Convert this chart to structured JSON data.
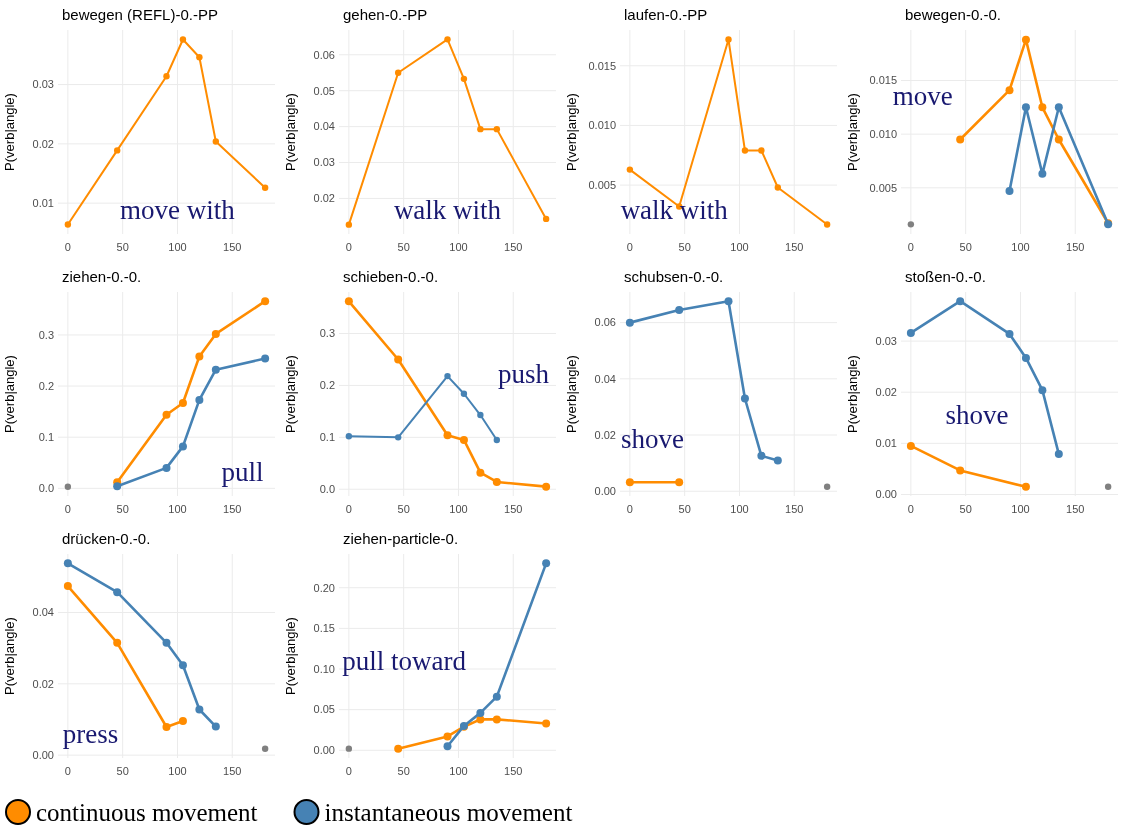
{
  "chart_data": [
    {
      "type": "line",
      "title": "bewegen (REFL)-0.-PP",
      "ylabel": "P(verb|angle)",
      "marker": "circle",
      "grid": true,
      "legend": "bottom",
      "xlim": [
        -9,
        189
      ],
      "xticks": [
        0,
        50,
        100,
        150
      ],
      "ylim": [
        0.0048,
        0.0392
      ],
      "yticks": [
        0.01,
        0.02,
        0.03
      ],
      "annotations": [
        "move with"
      ],
      "series": [
        {
          "name": "continuous movement",
          "color": "#ff8c00",
          "x": [
            0,
            45,
            90,
            105,
            120,
            135,
            180
          ],
          "values": [
            0.0064,
            0.0189,
            0.0314,
            0.0376,
            0.0346,
            0.0204,
            0.0126
          ]
        }
      ]
    },
    {
      "type": "line",
      "title": "gehen-0.-PP",
      "ylabel": "P(verb|angle)",
      "marker": "circle",
      "grid": true,
      "legend": "bottom",
      "xlim": [
        -9,
        189
      ],
      "xticks": [
        0,
        50,
        100,
        150
      ],
      "ylim": [
        0.0101,
        0.0669
      ],
      "yticks": [
        0.02,
        0.03,
        0.04,
        0.05,
        0.06
      ],
      "annotations": [
        "walk with"
      ],
      "series": [
        {
          "name": "continuous movement",
          "color": "#ff8c00",
          "x": [
            0,
            45,
            90,
            105,
            120,
            135,
            180
          ],
          "values": [
            0.0127,
            0.055,
            0.0643,
            0.0533,
            0.0393,
            0.0393,
            0.0143
          ]
        }
      ]
    },
    {
      "type": "line",
      "title": "laufen-0.-PP",
      "ylabel": "P(verb|angle)",
      "marker": "circle",
      "grid": true,
      "legend": "bottom",
      "xlim": [
        -9,
        189
      ],
      "xticks": [
        0,
        50,
        100,
        150
      ],
      "ylim": [
        0.0009,
        0.018
      ],
      "yticks": [
        0.005,
        {
          "value": 0.01,
          "label": "0.010"
        },
        0.015
      ],
      "annotations": [
        "walk with"
      ],
      "series": [
        {
          "name": "continuous movement",
          "color": "#ff8c00",
          "x": [
            0,
            45,
            90,
            105,
            120,
            135,
            180
          ],
          "values": [
            0.0063,
            0.0032,
            0.0172,
            0.0079,
            0.0079,
            0.0048,
            0.0017
          ]
        }
      ]
    },
    {
      "type": "line",
      "title": "bewegen-0.-0.",
      "ylabel": "P(verb|angle)",
      "marker": "circle",
      "grid": true,
      "legend": "bottom",
      "xlim": [
        -9,
        189
      ],
      "xticks": [
        0,
        50,
        100,
        150
      ],
      "ylim": [
        0.0007,
        0.0197
      ],
      "yticks": [
        0.005,
        {
          "value": 0.01,
          "label": "0.010"
        },
        0.015
      ],
      "annotations": [
        "move"
      ],
      "series": [
        {
          "name": "continuous movement",
          "color": "#ff8c00",
          "x": [
            45,
            90,
            105,
            120,
            135,
            180
          ],
          "values": [
            0.0095,
            0.0141,
            0.0188,
            0.0125,
            0.0095,
            0.0017
          ]
        },
        {
          "name": "instantaneous movement",
          "color": "#4682b4",
          "x": [
            90,
            105,
            120,
            135,
            180
          ],
          "values": [
            0.0047,
            0.0125,
            0.0063,
            0.0125,
            0.0016
          ]
        },
        {
          "color": "#808080",
          "x": [
            0
          ],
          "values": [
            0.0016
          ]
        }
      ]
    },
    {
      "type": "line",
      "title": "ziehen-0.-0.",
      "ylabel": "P(verb|angle)",
      "marker": "circle",
      "grid": true,
      "legend": "bottom",
      "xlim": [
        -9,
        189
      ],
      "xticks": [
        0,
        50,
        100,
        150
      ],
      "ylim": [
        -0.015,
        0.384
      ],
      "yticks": [
        {
          "value": 0,
          "label": "0.0"
        },
        0.1,
        0.2,
        0.3
      ],
      "annotations": [
        "pull"
      ],
      "series": [
        {
          "name": "continuous movement",
          "color": "#ff8c00",
          "x": [
            45,
            90,
            105,
            120,
            135,
            180
          ],
          "values": [
            0.012,
            0.144,
            0.167,
            0.258,
            0.302,
            0.366
          ]
        },
        {
          "name": "instantaneous movement",
          "color": "#4682b4",
          "x": [
            45,
            90,
            105,
            120,
            135,
            180
          ],
          "values": [
            0.004,
            0.04,
            0.082,
            0.173,
            0.232,
            0.254
          ]
        },
        {
          "color": "#808080",
          "x": [
            0
          ],
          "values": [
            0.003
          ]
        }
      ]
    },
    {
      "type": "line",
      "title": "schieben-0.-0.",
      "ylabel": "P(verb|angle)",
      "marker": "circle",
      "grid": true,
      "legend": "bottom",
      "xlim": [
        -9,
        189
      ],
      "xticks": [
        0,
        50,
        100,
        150
      ],
      "ylim": [
        -0.013,
        0.38
      ],
      "yticks": [
        {
          "value": 0,
          "label": "0.0"
        },
        0.1,
        0.2,
        0.3
      ],
      "annotations": [
        "push"
      ],
      "series": [
        {
          "name": "continuous movement",
          "color": "#ff8c00",
          "x": [
            0,
            45,
            90,
            105,
            120,
            135,
            180
          ],
          "values": [
            0.362,
            0.25,
            0.104,
            0.095,
            0.032,
            0.014,
            0.005
          ]
        },
        {
          "name": "instantaneous movement",
          "color": "#4682b4",
          "x": [
            0,
            45,
            90,
            105,
            120,
            135
          ],
          "values": [
            0.102,
            0.1,
            0.218,
            0.184,
            0.143,
            0.095
          ]
        }
      ]
    },
    {
      "type": "line",
      "title": "schubsen-0.-0.",
      "ylabel": "P(verb|angle)",
      "marker": "circle",
      "grid": true,
      "legend": "bottom",
      "xlim": [
        -9,
        189
      ],
      "xticks": [
        0,
        50,
        100,
        150
      ],
      "ylim": [
        -0.0017,
        0.0709
      ],
      "yticks": [
        {
          "value": 0,
          "label": "0.00"
        },
        {
          "value": 0.02,
          "label": "0.02"
        },
        {
          "value": 0.04,
          "label": "0.04"
        },
        {
          "value": 0.06,
          "label": "0.06"
        }
      ],
      "annotations": [
        "shove"
      ],
      "series": [
        {
          "name": "continuous movement",
          "color": "#ff8c00",
          "x": [
            0,
            45
          ],
          "values": [
            0.0032,
            0.0032
          ]
        },
        {
          "name": "instantaneous movement",
          "color": "#4682b4",
          "x": [
            0,
            45,
            90,
            105,
            120,
            135
          ],
          "values": [
            0.06,
            0.0645,
            0.0676,
            0.033,
            0.0126,
            0.0109
          ]
        },
        {
          "color": "#808080",
          "x": [
            180
          ],
          "values": [
            0.0016
          ]
        }
      ]
    },
    {
      "type": "line",
      "title": "stoßen-0.-0.",
      "ylabel": "P(verb|angle)",
      "marker": "circle",
      "grid": true,
      "legend": "bottom",
      "xlim": [
        -9,
        189
      ],
      "xticks": [
        0,
        50,
        100,
        150
      ],
      "ylim": [
        -0.0003,
        0.0396
      ],
      "yticks": [
        {
          "value": 0,
          "label": "0.00"
        },
        0.01,
        0.02,
        0.03
      ],
      "annotations": [
        "shove"
      ],
      "series": [
        {
          "name": "continuous movement",
          "color": "#ff8c00",
          "x": [
            0,
            45,
            105
          ],
          "values": [
            0.0095,
            0.0047,
            0.0015
          ]
        },
        {
          "name": "instantaneous movement",
          "color": "#4682b4",
          "x": [
            0,
            45,
            90,
            105,
            120,
            135
          ],
          "values": [
            0.0316,
            0.0378,
            0.0314,
            0.0267,
            0.0204,
            0.0079
          ]
        },
        {
          "color": "#808080",
          "x": [
            180
          ],
          "values": [
            0.0015
          ]
        }
      ]
    },
    {
      "type": "line",
      "title": "drücken-0.-0.",
      "ylabel": "P(verb|angle)",
      "marker": "circle",
      "grid": true,
      "legend": "bottom",
      "xlim": [
        -9,
        189
      ],
      "xticks": [
        0,
        50,
        100,
        150
      ],
      "ylim": [
        -0.0008,
        0.0564
      ],
      "yticks": [
        {
          "value": 0,
          "label": "0.00"
        },
        0.02,
        0.04
      ],
      "annotations": [
        "press"
      ],
      "series": [
        {
          "name": "continuous movement",
          "color": "#ff8c00",
          "x": [
            0,
            45,
            90,
            105
          ],
          "values": [
            0.0474,
            0.0315,
            0.0079,
            0.0096
          ]
        },
        {
          "name": "instantaneous movement",
          "color": "#4682b4",
          "x": [
            0,
            45,
            90,
            105,
            120,
            135
          ],
          "values": [
            0.0538,
            0.0457,
            0.0315,
            0.0252,
            0.0128,
            0.008
          ]
        },
        {
          "color": "#808080",
          "x": [
            180
          ],
          "values": [
            0.0018
          ]
        }
      ]
    },
    {
      "type": "line",
      "title": "ziehen-particle-0.",
      "ylabel": "P(verb|angle)",
      "marker": "circle",
      "grid": true,
      "legend": "bottom",
      "xlim": [
        -9,
        189
      ],
      "xticks": [
        0,
        50,
        100,
        150
      ],
      "ylim": [
        -0.0095,
        0.2415
      ],
      "yticks": [
        {
          "value": 0,
          "label": "0.00"
        },
        0.05,
        {
          "value": 0.1,
          "label": "0.10"
        },
        0.15,
        {
          "value": 0.2,
          "label": "0.20"
        }
      ],
      "annotations": [
        "pull toward"
      ],
      "series": [
        {
          "name": "continuous movement",
          "color": "#ff8c00",
          "x": [
            45,
            90,
            105,
            120,
            135,
            180
          ],
          "values": [
            0.002,
            0.017,
            0.029,
            0.038,
            0.038,
            0.033
          ]
        },
        {
          "name": "instantaneous movement",
          "color": "#4682b4",
          "x": [
            90,
            105,
            120,
            135,
            180
          ],
          "values": [
            0.005,
            0.03,
            0.046,
            0.066,
            0.23
          ]
        },
        {
          "color": "#808080",
          "x": [
            0
          ],
          "values": [
            0.002
          ]
        }
      ]
    }
  ]
}
